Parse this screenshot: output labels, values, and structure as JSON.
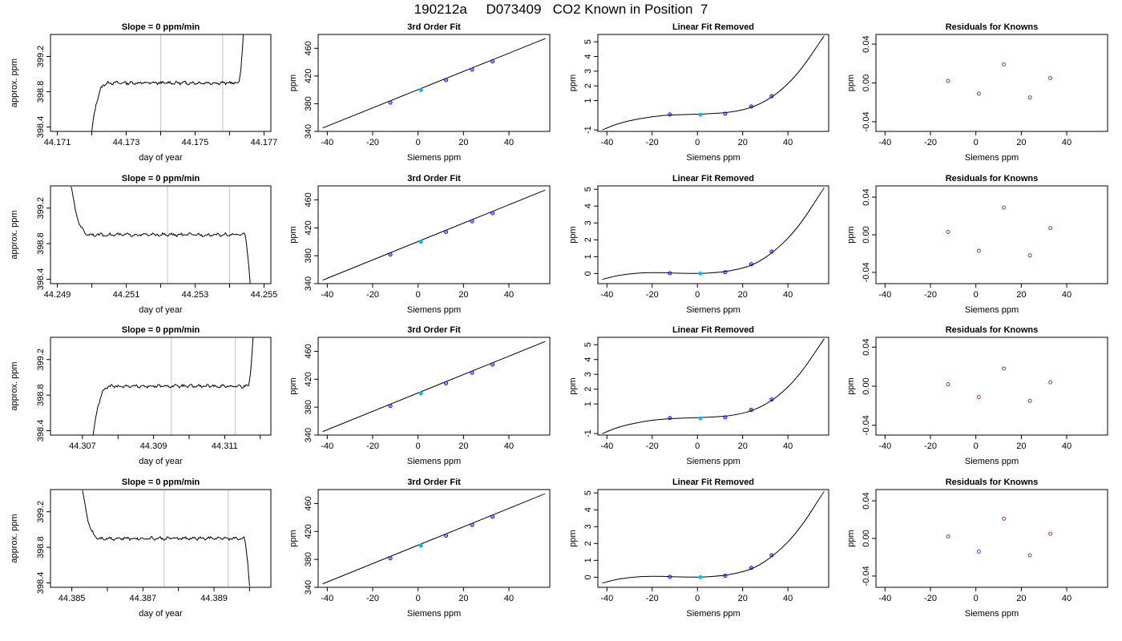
{
  "page_title": "190212a     D073409   CO2 Known in Position  7",
  "colors": {
    "known_point_outline": "#0000ff",
    "known_point_fill": "#ff00ff",
    "reference_point": "#00bfff",
    "residual_point": "#8a2be2",
    "gridline": "#cccccc",
    "trace": "#000000"
  },
  "chart_data": [
    {
      "row": 1,
      "type": "line",
      "title": "Slope =  0  ppm/min",
      "xlabel": "day of year",
      "ylabel": "approx. ppm",
      "xlim": [
        44.1708,
        44.1772
      ],
      "ylim": [
        398.35,
        399.45
      ],
      "x_ticks": [
        44.171,
        44.172,
        44.173,
        44.174,
        44.175,
        44.176,
        44.177
      ],
      "x_tick_labels": [
        "44.171",
        "",
        "44.173",
        "",
        "44.175",
        "",
        "44.177"
      ],
      "y_ticks": [
        398.4,
        398.8,
        399.2
      ],
      "y_tick_labels": [
        "398.4",
        "398.8",
        "399.2"
      ],
      "vlines": [
        44.174,
        44.1758
      ],
      "trace": {
        "start": 44.172,
        "end": 44.1764,
        "level": 398.9,
        "start_y": 398.35,
        "end_y": 399.45,
        "rise": "up",
        "fall": "up"
      }
    },
    {
      "row": 1,
      "type": "scatter",
      "title": "3rd Order Fit",
      "xlabel": "Siemens ppm",
      "ylabel": "ppm",
      "xlim": [
        -44,
        58
      ],
      "ylim": [
        340,
        480
      ],
      "x_ticks": [
        -40,
        -20,
        0,
        20,
        40
      ],
      "y_ticks": [
        340,
        380,
        420,
        460
      ],
      "curve": {
        "domain": [
          -42,
          56
        ],
        "points": [
          [
            -42,
            345
          ],
          [
            56,
            474
          ]
        ]
      },
      "points": [
        {
          "x": -12.2,
          "y": 381.6
        },
        {
          "x": 1.3,
          "y": 399.6
        },
        {
          "x": 12.3,
          "y": 414.0
        },
        {
          "x": 23.8,
          "y": 429.2
        },
        {
          "x": 32.8,
          "y": 441.0
        }
      ]
    },
    {
      "row": 1,
      "type": "scatter",
      "title": "Linear Fit Removed",
      "xlabel": "Siemens ppm",
      "ylabel": "ppm",
      "xlim": [
        -44,
        58
      ],
      "ylim": [
        -1.1,
        5.5
      ],
      "x_ticks": [
        -40,
        -20,
        0,
        20,
        40
      ],
      "y_ticks": [
        -1,
        1,
        2,
        3,
        4,
        5
      ],
      "curve": {
        "domain": [
          -42,
          56
        ],
        "points": [
          [
            -42,
            -1.0
          ],
          [
            -35,
            -0.55
          ],
          [
            -25,
            -0.2
          ],
          [
            -15,
            0.0
          ],
          [
            -5,
            0.05
          ],
          [
            5,
            0.1
          ],
          [
            15,
            0.2
          ],
          [
            25,
            0.55
          ],
          [
            35,
            1.4
          ],
          [
            45,
            2.9
          ],
          [
            56,
            5.4
          ]
        ]
      },
      "points": [
        {
          "x": -12.2,
          "y": 0.05
        },
        {
          "x": 1.3,
          "y": 0.03
        },
        {
          "x": 12.3,
          "y": 0.1
        },
        {
          "x": 23.8,
          "y": 0.6
        },
        {
          "x": 32.8,
          "y": 1.3
        }
      ]
    },
    {
      "row": 1,
      "type": "scatter",
      "title": "Residuals for Knowns",
      "xlabel": "Siemens ppm",
      "ylabel": "ppm",
      "xlim": [
        -44,
        58
      ],
      "ylim": [
        -0.05,
        0.05
      ],
      "x_ticks": [
        -40,
        -20,
        0,
        20,
        40
      ],
      "y_ticks": [
        -0.04,
        0.0,
        0.04
      ],
      "y_tick_labels": [
        "-0.04",
        "0.00",
        "0.04"
      ],
      "points": [
        {
          "x": -12.2,
          "y": 0.002
        },
        {
          "x": 1.3,
          "y": -0.011
        },
        {
          "x": 12.3,
          "y": 0.019
        },
        {
          "x": 23.8,
          "y": -0.015
        },
        {
          "x": 32.8,
          "y": 0.005
        }
      ]
    },
    {
      "row": 2,
      "type": "line",
      "title": "Slope =  0  ppm/min",
      "xlabel": "day of year",
      "ylabel": "approx. ppm",
      "xlim": [
        44.2488,
        44.2552
      ],
      "ylim": [
        398.35,
        399.45
      ],
      "x_ticks": [
        44.249,
        44.25,
        44.251,
        44.252,
        44.253,
        44.254,
        44.255
      ],
      "x_tick_labels": [
        "44.249",
        "",
        "44.251",
        "",
        "44.253",
        "",
        "44.255"
      ],
      "y_ticks": [
        398.4,
        398.8,
        399.2
      ],
      "y_tick_labels": [
        "398.4",
        "398.8",
        "399.2"
      ],
      "vlines": [
        44.2522,
        44.254
      ],
      "trace": {
        "start": 44.2494,
        "end": 44.2546,
        "level": 398.9,
        "start_y": 399.45,
        "end_y": 398.35,
        "rise": "down",
        "fall": "down"
      }
    },
    {
      "row": 2,
      "type": "scatter",
      "title": "3rd Order Fit",
      "xlabel": "Siemens ppm",
      "ylabel": "ppm",
      "xlim": [
        -44,
        58
      ],
      "ylim": [
        340,
        480
      ],
      "x_ticks": [
        -40,
        -20,
        0,
        20,
        40
      ],
      "y_ticks": [
        340,
        380,
        420,
        460
      ],
      "curve": {
        "domain": [
          -42,
          56
        ],
        "points": [
          [
            -42,
            345
          ],
          [
            56,
            474
          ]
        ]
      },
      "points": [
        {
          "x": -12.2,
          "y": 381.6
        },
        {
          "x": 1.3,
          "y": 399.6
        },
        {
          "x": 12.3,
          "y": 414.0
        },
        {
          "x": 23.8,
          "y": 429.2
        },
        {
          "x": 32.8,
          "y": 441.0
        }
      ]
    },
    {
      "row": 2,
      "type": "scatter",
      "title": "Linear Fit Removed",
      "xlabel": "Siemens ppm",
      "ylabel": "ppm",
      "xlim": [
        -44,
        58
      ],
      "ylim": [
        -0.6,
        5.2
      ],
      "x_ticks": [
        -40,
        -20,
        0,
        20,
        40
      ],
      "y_ticks": [
        0,
        1,
        2,
        3,
        4,
        5
      ],
      "curve": {
        "domain": [
          -42,
          56
        ],
        "points": [
          [
            -42,
            -0.35
          ],
          [
            -35,
            -0.1
          ],
          [
            -25,
            0.05
          ],
          [
            -15,
            0.05
          ],
          [
            -5,
            0.0
          ],
          [
            5,
            0.02
          ],
          [
            15,
            0.15
          ],
          [
            25,
            0.5
          ],
          [
            35,
            1.4
          ],
          [
            45,
            2.8
          ],
          [
            56,
            5.1
          ]
        ]
      },
      "points": [
        {
          "x": -12.2,
          "y": 0.02
        },
        {
          "x": 1.3,
          "y": 0.0
        },
        {
          "x": 12.3,
          "y": 0.08
        },
        {
          "x": 23.8,
          "y": 0.55
        },
        {
          "x": 32.8,
          "y": 1.3
        }
      ]
    },
    {
      "row": 2,
      "type": "scatter",
      "title": "Residuals for Knowns",
      "xlabel": "Siemens ppm",
      "ylabel": "ppm",
      "xlim": [
        -44,
        58
      ],
      "ylim": [
        -0.052,
        0.052
      ],
      "x_ticks": [
        -40,
        -20,
        0,
        20,
        40
      ],
      "y_ticks": [
        -0.04,
        0.0,
        0.04
      ],
      "y_tick_labels": [
        "-0.04",
        "0.00",
        "0.04"
      ],
      "points": [
        {
          "x": -12.2,
          "y": 0.003
        },
        {
          "x": 1.3,
          "y": -0.017
        },
        {
          "x": 12.3,
          "y": 0.029
        },
        {
          "x": 23.8,
          "y": -0.022
        },
        {
          "x": 32.8,
          "y": 0.007
        }
      ]
    },
    {
      "row": 3,
      "type": "line",
      "title": "Slope =  0  ppm/min",
      "xlabel": "day of year",
      "ylabel": "approx. ppm",
      "xlim": [
        44.3061,
        44.3123
      ],
      "ylim": [
        398.35,
        399.45
      ],
      "x_ticks": [
        44.307,
        44.308,
        44.309,
        44.31,
        44.311,
        44.312
      ],
      "x_tick_labels": [
        "44.307",
        "",
        "44.309",
        "",
        "44.311",
        ""
      ],
      "y_ticks": [
        398.4,
        398.8,
        399.2
      ],
      "y_tick_labels": [
        "398.4",
        "398.8",
        "399.2"
      ],
      "vlines": [
        44.3095,
        44.3113
      ],
      "trace": {
        "start": 44.3073,
        "end": 44.3118,
        "level": 398.9,
        "start_y": 398.35,
        "end_y": 399.45,
        "rise": "up",
        "fall": "up"
      }
    },
    {
      "row": 3,
      "type": "scatter",
      "title": "3rd Order Fit",
      "xlabel": "Siemens ppm",
      "ylabel": "ppm",
      "xlim": [
        -44,
        58
      ],
      "ylim": [
        340,
        480
      ],
      "x_ticks": [
        -40,
        -20,
        0,
        20,
        40
      ],
      "y_ticks": [
        340,
        380,
        420,
        460
      ],
      "curve": {
        "domain": [
          -42,
          56
        ],
        "points": [
          [
            -42,
            345
          ],
          [
            56,
            474
          ]
        ]
      },
      "points": [
        {
          "x": -12.2,
          "y": 381.6
        },
        {
          "x": 1.3,
          "y": 399.6
        },
        {
          "x": 12.3,
          "y": 414.0
        },
        {
          "x": 23.8,
          "y": 429.2
        },
        {
          "x": 32.8,
          "y": 441.0
        }
      ]
    },
    {
      "row": 3,
      "type": "scatter",
      "title": "Linear Fit Removed",
      "xlabel": "Siemens ppm",
      "ylabel": "ppm",
      "xlim": [
        -44,
        58
      ],
      "ylim": [
        -1.1,
        5.5
      ],
      "x_ticks": [
        -40,
        -20,
        0,
        20,
        40
      ],
      "y_ticks": [
        -1,
        1,
        2,
        3,
        4,
        5
      ],
      "curve": {
        "domain": [
          -42,
          56
        ],
        "points": [
          [
            -42,
            -1.0
          ],
          [
            -35,
            -0.55
          ],
          [
            -25,
            -0.2
          ],
          [
            -15,
            0.0
          ],
          [
            -5,
            0.05
          ],
          [
            5,
            0.1
          ],
          [
            15,
            0.2
          ],
          [
            25,
            0.55
          ],
          [
            35,
            1.4
          ],
          [
            45,
            2.9
          ],
          [
            56,
            5.4
          ]
        ]
      },
      "points": [
        {
          "x": -12.2,
          "y": 0.05
        },
        {
          "x": 1.3,
          "y": 0.03
        },
        {
          "x": 12.3,
          "y": 0.1
        },
        {
          "x": 23.8,
          "y": 0.6
        },
        {
          "x": 32.8,
          "y": 1.3
        }
      ]
    },
    {
      "row": 3,
      "type": "scatter",
      "title": "Residuals for Knowns",
      "xlabel": "Siemens ppm",
      "ylabel": "ppm",
      "xlim": [
        -44,
        58
      ],
      "ylim": [
        -0.05,
        0.05
      ],
      "x_ticks": [
        -40,
        -20,
        0,
        20,
        40
      ],
      "y_ticks": [
        -0.04,
        0.0,
        0.04
      ],
      "y_tick_labels": [
        "-0.04",
        "0.00",
        "0.04"
      ],
      "points": [
        {
          "x": -12.2,
          "y": 0.002
        },
        {
          "x": 1.3,
          "y": -0.011
        },
        {
          "x": 12.3,
          "y": 0.018
        },
        {
          "x": 23.8,
          "y": -0.015
        },
        {
          "x": 32.8,
          "y": 0.004
        }
      ]
    },
    {
      "row": 4,
      "type": "line",
      "title": "Slope =  0  ppm/min",
      "xlabel": "day of year",
      "ylabel": "approx. ppm",
      "xlim": [
        44.3844,
        44.3906
      ],
      "ylim": [
        398.35,
        399.45
      ],
      "x_ticks": [
        44.385,
        44.386,
        44.387,
        44.388,
        44.389,
        44.39
      ],
      "x_tick_labels": [
        "44.385",
        "",
        "44.387",
        "",
        "44.389",
        ""
      ],
      "y_ticks": [
        398.4,
        398.8,
        399.2
      ],
      "y_tick_labels": [
        "398.4",
        "398.8",
        "399.2"
      ],
      "vlines": [
        44.3876,
        44.3894
      ],
      "trace": {
        "start": 44.3853,
        "end": 44.39,
        "level": 398.9,
        "start_y": 399.45,
        "end_y": 398.35,
        "rise": "down",
        "fall": "down"
      }
    },
    {
      "row": 4,
      "type": "scatter",
      "title": "3rd Order Fit",
      "xlabel": "Siemens ppm",
      "ylabel": "ppm",
      "xlim": [
        -44,
        58
      ],
      "ylim": [
        340,
        480
      ],
      "x_ticks": [
        -40,
        -20,
        0,
        20,
        40
      ],
      "y_ticks": [
        340,
        380,
        420,
        460
      ],
      "curve": {
        "domain": [
          -42,
          56
        ],
        "points": [
          [
            -42,
            345
          ],
          [
            56,
            474
          ]
        ]
      },
      "points": [
        {
          "x": -12.2,
          "y": 381.6
        },
        {
          "x": 1.3,
          "y": 399.6
        },
        {
          "x": 12.3,
          "y": 414.0
        },
        {
          "x": 23.8,
          "y": 429.2
        },
        {
          "x": 32.8,
          "y": 441.0
        }
      ]
    },
    {
      "row": 4,
      "type": "scatter",
      "title": "Linear Fit Removed",
      "xlabel": "Siemens ppm",
      "ylabel": "ppm",
      "xlim": [
        -44,
        58
      ],
      "ylim": [
        -0.6,
        5.2
      ],
      "x_ticks": [
        -40,
        -20,
        0,
        20,
        40
      ],
      "y_ticks": [
        0,
        1,
        2,
        3,
        4,
        5
      ],
      "curve": {
        "domain": [
          -42,
          56
        ],
        "points": [
          [
            -42,
            -0.35
          ],
          [
            -35,
            -0.1
          ],
          [
            -25,
            0.05
          ],
          [
            -15,
            0.05
          ],
          [
            -5,
            0.0
          ],
          [
            5,
            0.02
          ],
          [
            15,
            0.15
          ],
          [
            25,
            0.5
          ],
          [
            35,
            1.4
          ],
          [
            45,
            2.8
          ],
          [
            56,
            5.1
          ]
        ]
      },
      "points": [
        {
          "x": -12.2,
          "y": 0.02
        },
        {
          "x": 1.3,
          "y": 0.0
        },
        {
          "x": 12.3,
          "y": 0.08
        },
        {
          "x": 23.8,
          "y": 0.55
        },
        {
          "x": 32.8,
          "y": 1.3
        }
      ]
    },
    {
      "row": 4,
      "type": "scatter",
      "title": "Residuals for Knowns",
      "xlabel": "Siemens ppm",
      "ylabel": "ppm",
      "xlim": [
        -44,
        58
      ],
      "ylim": [
        -0.052,
        0.052
      ],
      "x_ticks": [
        -40,
        -20,
        0,
        20,
        40
      ],
      "y_ticks": [
        -0.04,
        0.0,
        0.04
      ],
      "y_tick_labels": [
        "-0.04",
        "0.00",
        "0.04"
      ],
      "points": [
        {
          "x": -12.2,
          "y": 0.002
        },
        {
          "x": 1.3,
          "y": -0.014
        },
        {
          "x": 12.3,
          "y": 0.021
        },
        {
          "x": 23.8,
          "y": -0.018
        },
        {
          "x": 32.8,
          "y": 0.005
        }
      ]
    }
  ]
}
